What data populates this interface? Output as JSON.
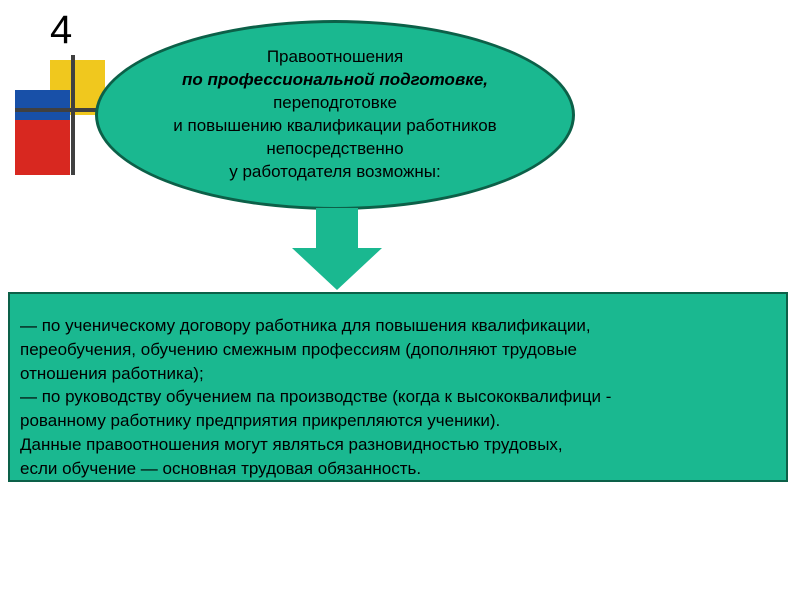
{
  "page_number": "4",
  "colors": {
    "shape_fill": "#1ab890",
    "shape_border": "#0c6048",
    "text": "#000000",
    "sq_yellow": "#f0c81e",
    "sq_blue": "#1850a8",
    "sq_red": "#d82820",
    "cross": "#404040"
  },
  "ellipse": {
    "lines": [
      {
        "text": "Правоотношения",
        "bold": false
      },
      {
        "text": "по профессиональной подготовке,",
        "bold": true
      },
      {
        "text": "переподготовке",
        "bold": false
      },
      {
        "text": "и повышению квалификации работников",
        "bold": false
      },
      {
        "text": "непосредственно",
        "bold": false
      },
      {
        "text": "у работодателя возможны:",
        "bold": false
      }
    ]
  },
  "box": {
    "lines": [
      "— по ученическому договору работника для повышения квалификации,",
      " переобучения, обучению смежным профессиям (дополняют трудовые",
      " отношения работника);",
      "— по руководству обучением па производстве (когда  к высококвалифици -",
      "рованному работнику предприятия  прикрепляются ученики).",
      " Данные правоотношения могут являться разновидностью трудовых,",
      "если обучение — основная трудовая обязанность."
    ]
  },
  "styling": {
    "ellipse_border_width": 3,
    "box_border_width": 2,
    "font_size": 17
  }
}
